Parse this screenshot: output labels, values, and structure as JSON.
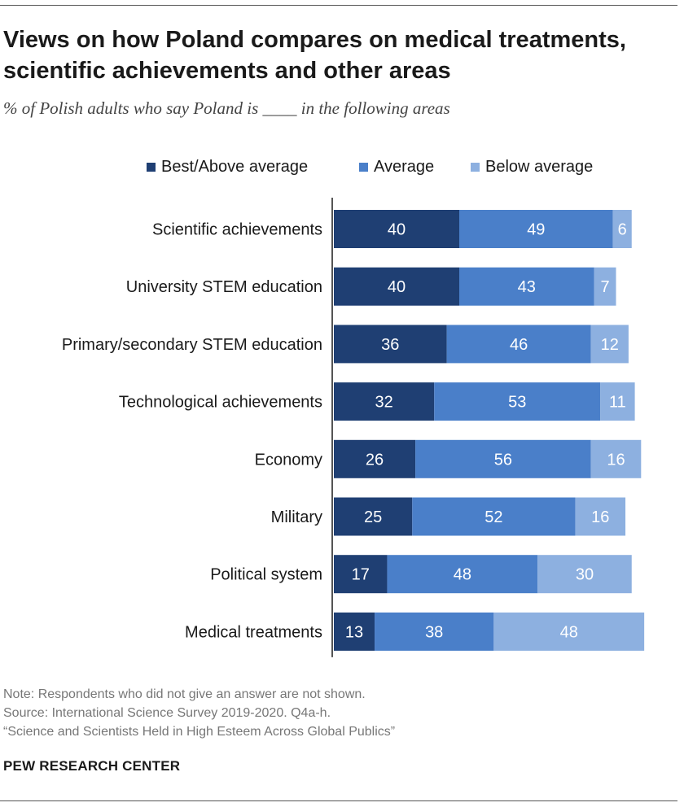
{
  "title": "Views on how Poland compares on medical treatments, scientific achievements and other areas",
  "subtitle": "% of Polish adults who say Poland is ____ in the following areas",
  "legend": [
    {
      "label": "Best/Above average",
      "color": "#1f3f73"
    },
    {
      "label": "Average",
      "color": "#4a7fc9"
    },
    {
      "label": "Below average",
      "color": "#8db0e0"
    }
  ],
  "chart_data": {
    "type": "bar",
    "orientation": "horizontal",
    "stacked": true,
    "title": "Views on how Poland compares on medical treatments, scientific achievements and other areas",
    "categories": [
      "Scientific achievements",
      "University STEM education",
      "Primary/secondary STEM education",
      "Technological achievements",
      "Economy",
      "Military",
      "Political system",
      "Medical treatments"
    ],
    "series": [
      {
        "name": "Best/Above average",
        "values": [
          40,
          40,
          36,
          32,
          26,
          25,
          17,
          13
        ]
      },
      {
        "name": "Average",
        "values": [
          49,
          43,
          46,
          53,
          56,
          52,
          48,
          38
        ]
      },
      {
        "name": "Below average",
        "values": [
          6,
          7,
          12,
          11,
          16,
          16,
          30,
          48
        ]
      }
    ],
    "xlim": [
      0,
      100
    ],
    "grid": false,
    "legend_position": "top"
  },
  "colors": {
    "label_dark": "#ffffff",
    "axis": "#555555"
  },
  "notes": {
    "note": "Note: Respondents who did not give an answer are not shown.",
    "source": "Source: International Science Survey 2019-2020. Q4a-h.",
    "report": "“Science and Scientists Held in High Esteem Across Global Publics”"
  },
  "footer": "PEW RESEARCH CENTER"
}
